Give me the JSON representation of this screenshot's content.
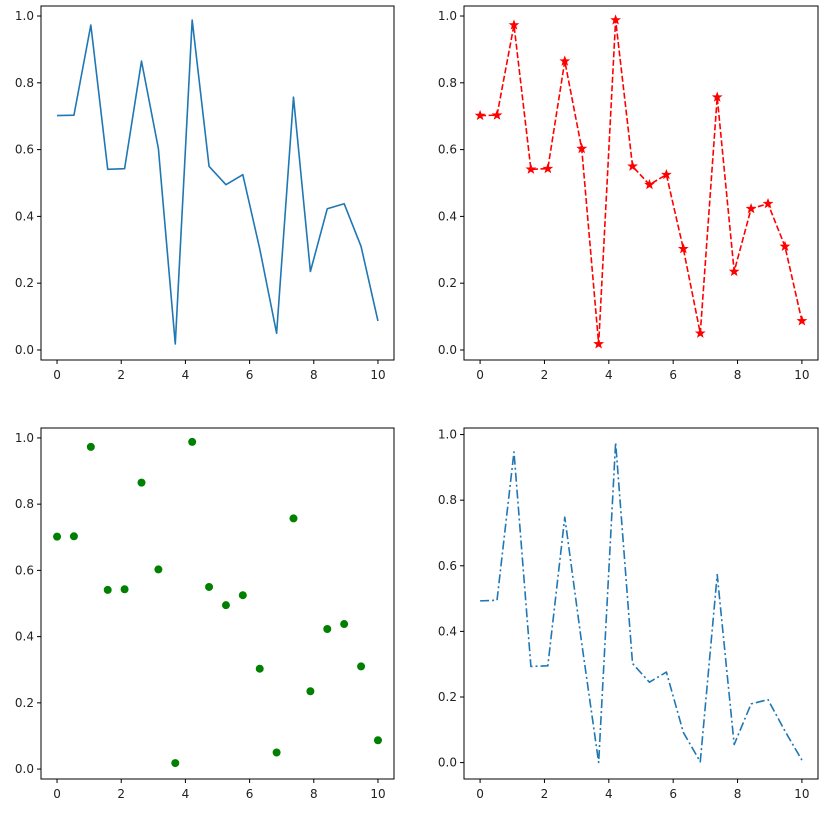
{
  "colors": {
    "blue": "#1f77b4",
    "red": "#ff0000",
    "green": "#008000",
    "axes": "#000000"
  },
  "chart_data": [
    {
      "type": "line",
      "line_style": "solid",
      "color": "#1f77b4",
      "marker": "none",
      "x": [
        0,
        0.526,
        1.053,
        1.579,
        2.105,
        2.632,
        3.158,
        3.684,
        4.211,
        4.737,
        5.263,
        5.789,
        6.316,
        6.842,
        7.368,
        7.895,
        8.421,
        8.947,
        9.474,
        10
      ],
      "series": [
        {
          "values": [
            0.702,
            0.703,
            0.973,
            0.541,
            0.543,
            0.865,
            0.603,
            0.018,
            0.988,
            0.55,
            0.495,
            0.525,
            0.303,
            0.05,
            0.757,
            0.235,
            0.423,
            0.438,
            0.31,
            0.087
          ]
        }
      ],
      "xlim": [
        -0.5,
        10.5
      ],
      "ylim": [
        -0.03,
        1.03
      ],
      "xticks": [
        "0",
        "2",
        "4",
        "6",
        "8",
        "10"
      ],
      "yticks": [
        "0.0",
        "0.2",
        "0.4",
        "0.6",
        "0.8",
        "1.0"
      ],
      "grid": false,
      "title": "",
      "xlabel": "",
      "ylabel": ""
    },
    {
      "type": "line",
      "line_style": "dashed",
      "color": "#ff0000",
      "marker": "star",
      "x": [
        0,
        0.526,
        1.053,
        1.579,
        2.105,
        2.632,
        3.158,
        3.684,
        4.211,
        4.737,
        5.263,
        5.789,
        6.316,
        6.842,
        7.368,
        7.895,
        8.421,
        8.947,
        9.474,
        10
      ],
      "series": [
        {
          "values": [
            0.702,
            0.703,
            0.973,
            0.541,
            0.543,
            0.865,
            0.603,
            0.018,
            0.988,
            0.55,
            0.495,
            0.525,
            0.303,
            0.05,
            0.757,
            0.235,
            0.423,
            0.438,
            0.31,
            0.087
          ]
        }
      ],
      "xlim": [
        -0.5,
        10.5
      ],
      "ylim": [
        -0.03,
        1.03
      ],
      "xticks": [
        "0",
        "2",
        "4",
        "6",
        "8",
        "10"
      ],
      "yticks": [
        "0.0",
        "0.2",
        "0.4",
        "0.6",
        "0.8",
        "1.0"
      ],
      "grid": false,
      "title": "",
      "xlabel": "",
      "ylabel": ""
    },
    {
      "type": "scatter",
      "color": "#008000",
      "marker": "circle",
      "x": [
        0,
        0.526,
        1.053,
        1.579,
        2.105,
        2.632,
        3.158,
        3.684,
        4.211,
        4.737,
        5.263,
        5.789,
        6.316,
        6.842,
        7.368,
        7.895,
        8.421,
        8.947,
        9.474,
        10
      ],
      "series": [
        {
          "values": [
            0.702,
            0.703,
            0.973,
            0.541,
            0.543,
            0.865,
            0.603,
            0.018,
            0.988,
            0.55,
            0.495,
            0.525,
            0.303,
            0.05,
            0.757,
            0.235,
            0.423,
            0.438,
            0.31,
            0.087
          ]
        }
      ],
      "xlim": [
        -0.5,
        10.5
      ],
      "ylim": [
        -0.03,
        1.03
      ],
      "xticks": [
        "0",
        "2",
        "4",
        "6",
        "8",
        "10"
      ],
      "yticks": [
        "0.0",
        "0.2",
        "0.4",
        "0.6",
        "0.8",
        "1.0"
      ],
      "grid": false,
      "title": "",
      "xlabel": "",
      "ylabel": ""
    },
    {
      "type": "line",
      "line_style": "dashdot",
      "color": "#1f77b4",
      "marker": "none",
      "x": [
        0,
        0.526,
        1.053,
        1.579,
        2.105,
        2.632,
        3.158,
        3.684,
        4.211,
        4.737,
        5.263,
        5.789,
        6.316,
        6.842,
        7.368,
        7.895,
        8.421,
        8.947,
        9.474,
        10
      ],
      "series": [
        {
          "values": [
            0.493,
            0.495,
            0.947,
            0.293,
            0.295,
            0.748,
            0.364,
            0.0003,
            0.976,
            0.302,
            0.245,
            0.276,
            0.092,
            0.0025,
            0.573,
            0.055,
            0.179,
            0.192,
            0.096,
            0.0076
          ]
        }
      ],
      "xlim": [
        -0.5,
        10.5
      ],
      "ylim": [
        -0.05,
        1.02
      ],
      "xticks": [
        "0",
        "2",
        "4",
        "6",
        "8",
        "10"
      ],
      "yticks": [
        "0.0",
        "0.2",
        "0.4",
        "0.6",
        "0.8",
        "1.0"
      ],
      "grid": false,
      "title": "",
      "xlabel": "",
      "ylabel": ""
    }
  ]
}
